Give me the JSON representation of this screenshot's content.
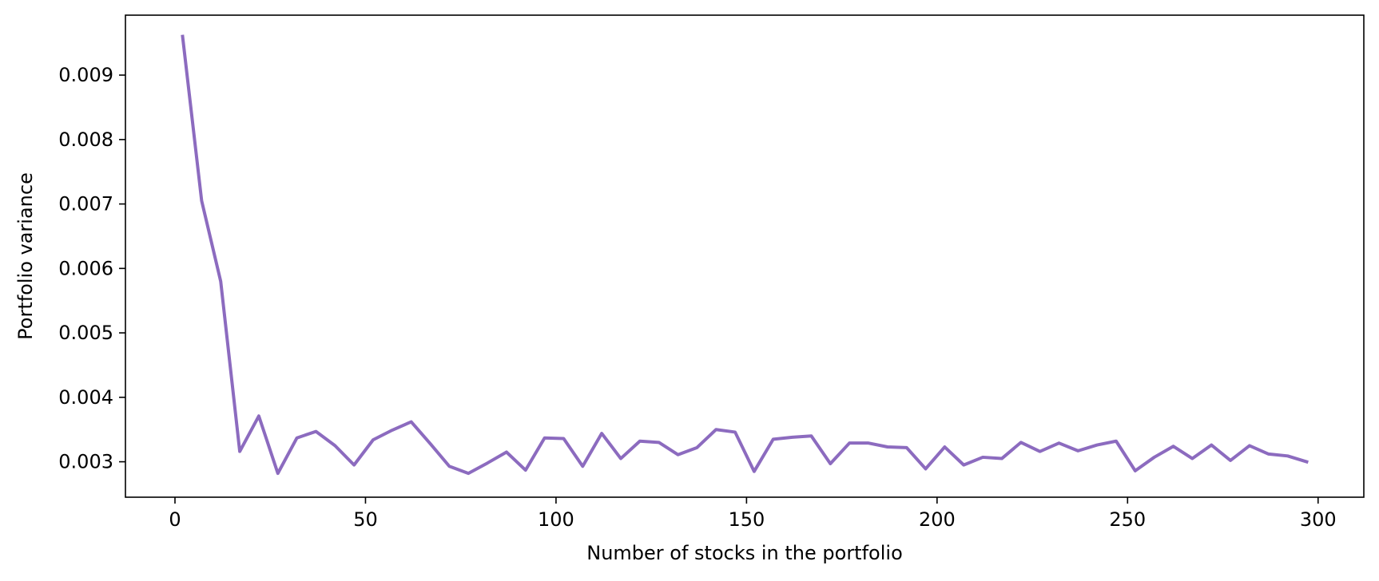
{
  "chart_data": {
    "type": "line",
    "title": "",
    "xlabel": "Number of stocks in the portfolio",
    "ylabel": "Portfolio variance",
    "xlim": [
      -13,
      312
    ],
    "ylim": [
      0.00245,
      0.00993
    ],
    "xticks": [
      0,
      50,
      100,
      150,
      200,
      250,
      300
    ],
    "xtick_labels": [
      "0",
      "50",
      "100",
      "150",
      "200",
      "250",
      "300"
    ],
    "yticks": [
      0.003,
      0.004,
      0.005,
      0.006,
      0.007,
      0.008,
      0.009
    ],
    "ytick_labels": [
      "0.003",
      "0.004",
      "0.005",
      "0.006",
      "0.007",
      "0.008",
      "0.009"
    ],
    "grid": false,
    "legend": false,
    "line_color": "#8c6bbf",
    "series": [
      {
        "x": [
          2,
          7,
          12,
          17,
          22,
          27,
          32,
          37,
          42,
          47,
          52,
          57,
          62,
          67,
          72,
          77,
          82,
          87,
          92,
          97,
          102,
          107,
          112,
          117,
          122,
          127,
          132,
          137,
          142,
          147,
          152,
          157,
          162,
          167,
          172,
          177,
          182,
          187,
          192,
          197,
          202,
          207,
          212,
          217,
          222,
          227,
          232,
          237,
          242,
          247,
          252,
          257,
          262,
          267,
          272,
          277,
          282,
          287,
          292,
          297
        ],
        "values": [
          0.0096,
          0.00705,
          0.0058,
          0.00316,
          0.00371,
          0.00282,
          0.00337,
          0.00347,
          0.00325,
          0.00295,
          0.00334,
          0.00349,
          0.00362,
          0.00328,
          0.00293,
          0.00282,
          0.00298,
          0.00315,
          0.00287,
          0.00337,
          0.00336,
          0.00293,
          0.00344,
          0.00305,
          0.00332,
          0.0033,
          0.00311,
          0.00322,
          0.0035,
          0.00346,
          0.00285,
          0.00335,
          0.00338,
          0.0034,
          0.00297,
          0.00329,
          0.00329,
          0.00323,
          0.00322,
          0.00289,
          0.00323,
          0.00295,
          0.00307,
          0.00305,
          0.0033,
          0.00316,
          0.00329,
          0.00317,
          0.00326,
          0.00332,
          0.00286,
          0.00307,
          0.00324,
          0.00305,
          0.00326,
          0.00302,
          0.00325,
          0.00312,
          0.00309,
          0.003
        ]
      }
    ]
  }
}
